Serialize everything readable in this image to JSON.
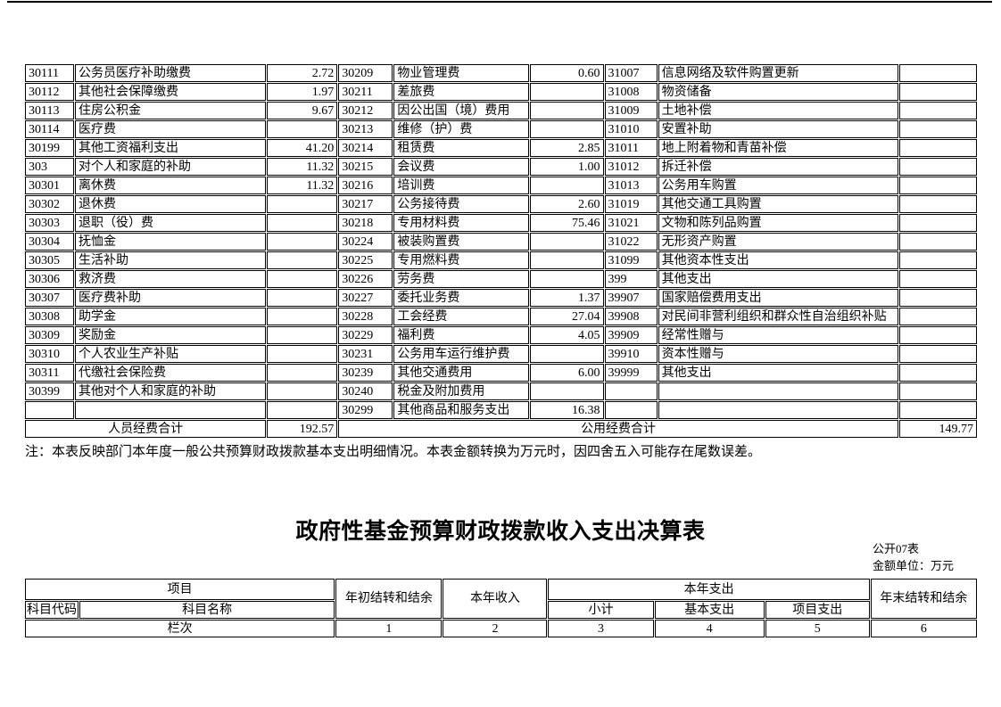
{
  "note": "注：本表反映部门本年度一般公共预算财政拨款基本支出明细情况。本表金额转换为万元时，因四舍五入可能存在尾数误差。",
  "detail_table": {
    "rows": [
      [
        "30111",
        "公务员医疗补助缴费",
        "2.72",
        "30209",
        "物业管理费",
        "0.60",
        "31007",
        "信息网络及软件购置更新",
        ""
      ],
      [
        "30112",
        "其他社会保障缴费",
        "1.97",
        "30211",
        "差旅费",
        "",
        "31008",
        "物资储备",
        ""
      ],
      [
        "30113",
        "住房公积金",
        "9.67",
        "30212",
        "因公出国（境）费用",
        "",
        "31009",
        "土地补偿",
        ""
      ],
      [
        "30114",
        "医疗费",
        "",
        "30213",
        "维修（护）费",
        "",
        "31010",
        "安置补助",
        ""
      ],
      [
        "30199",
        "其他工资福利支出",
        "41.20",
        "30214",
        "租赁费",
        "2.85",
        "31011",
        "地上附着物和青苗补偿",
        ""
      ],
      [
        "303",
        "对个人和家庭的补助",
        "11.32",
        "30215",
        "会议费",
        "1.00",
        "31012",
        "拆迁补偿",
        ""
      ],
      [
        "30301",
        "离休费",
        "11.32",
        "30216",
        "培训费",
        "",
        "31013",
        "公务用车购置",
        ""
      ],
      [
        "30302",
        "退休费",
        "",
        "30217",
        "公务接待费",
        "2.60",
        "31019",
        "其他交通工具购置",
        ""
      ],
      [
        "30303",
        "退职（役）费",
        "",
        "30218",
        "专用材料费",
        "75.46",
        "31021",
        "文物和陈列品购置",
        ""
      ],
      [
        "30304",
        "抚恤金",
        "",
        "30224",
        "被装购置费",
        "",
        "31022",
        "无形资产购置",
        ""
      ],
      [
        "30305",
        "生活补助",
        "",
        "30225",
        "专用燃料费",
        "",
        "31099",
        "其他资本性支出",
        ""
      ],
      [
        "30306",
        "救济费",
        "",
        "30226",
        "劳务费",
        "",
        "399",
        "其他支出",
        ""
      ],
      [
        "30307",
        "医疗费补助",
        "",
        "30227",
        "委托业务费",
        "1.37",
        "39907",
        "国家赔偿费用支出",
        ""
      ],
      [
        "30308",
        "助学金",
        "",
        "30228",
        "工会经费",
        "27.04",
        "39908",
        "对民间非营利组织和群众性自治组织补贴",
        ""
      ],
      [
        "30309",
        "奖励金",
        "",
        "30229",
        "福利费",
        "4.05",
        "39909",
        "经常性赠与",
        ""
      ],
      [
        "30310",
        "个人农业生产补贴",
        "",
        "30231",
        "公务用车运行维护费",
        "",
        "39910",
        "资本性赠与",
        ""
      ],
      [
        "30311",
        "代缴社会保险费",
        "",
        "30239",
        "其他交通费用",
        "6.00",
        "39999",
        "其他支出",
        ""
      ],
      [
        "30399",
        "其他对个人和家庭的补助",
        "",
        "30240",
        "税金及附加费用",
        "",
        "",
        "",
        ""
      ],
      [
        "",
        "",
        "",
        "30299",
        "其他商品和服务支出",
        "16.38",
        "",
        "",
        ""
      ]
    ],
    "total": {
      "personnel_label": "人员经费合计",
      "personnel_value": "192.57",
      "public_label": "公用经费合计",
      "public_value": "149.77"
    }
  },
  "section": {
    "title": "政府性基金预算财政拨款收入支出决算表",
    "table_code": "公开07表",
    "unit": "金额单位：万元"
  },
  "fund_table": {
    "header": {
      "project": "项目",
      "subject_code": "科目代码",
      "subject_name": "科目名称",
      "opening_balance": "年初结转和结余",
      "current_income": "本年收入",
      "current_expenditure": "本年支出",
      "subtotal": "小计",
      "basic_expenditure": "基本支出",
      "project_expenditure": "项目支出",
      "closing_balance": "年末结转和结余",
      "column_row_label": "栏次"
    },
    "column_numbers": [
      "1",
      "2",
      "3",
      "4",
      "5",
      "6"
    ]
  }
}
